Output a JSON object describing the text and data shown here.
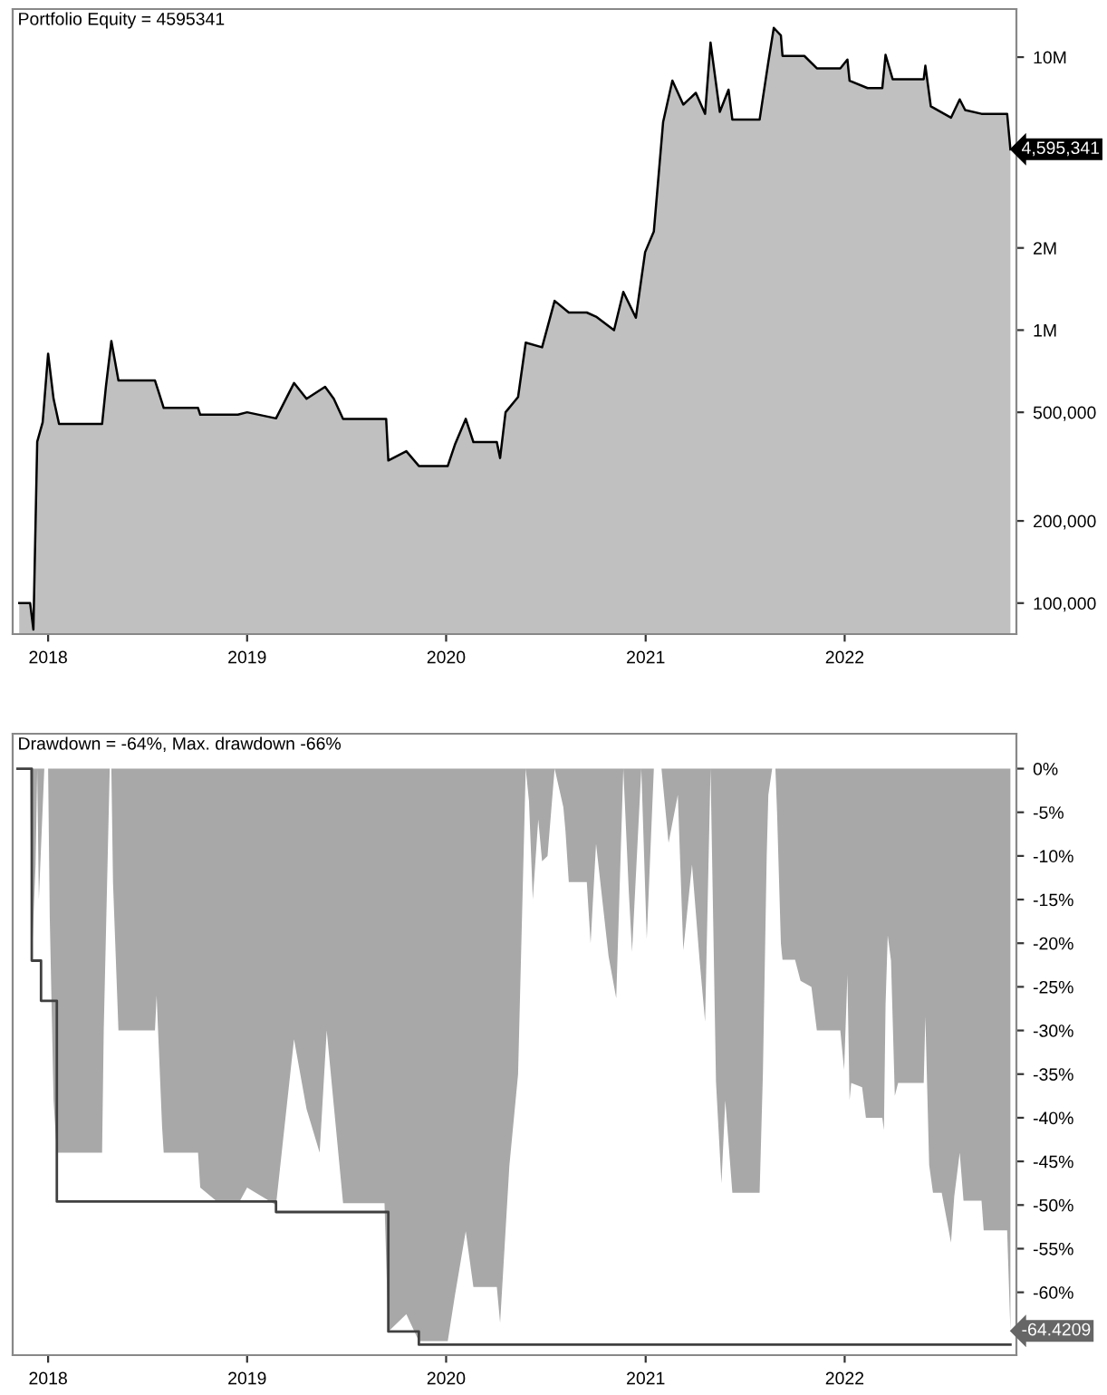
{
  "chart_data": [
    {
      "type": "area",
      "title": "Portfolio Equity = 4595341",
      "log": "y",
      "grid": false,
      "legend": false,
      "ylim": [
        77000,
        15000000
      ],
      "yticks": [
        {
          "value": 100000,
          "label": "100,000"
        },
        {
          "value": 200000,
          "label": "200,000"
        },
        {
          "value": 500000,
          "label": "500,000"
        },
        {
          "value": 1000000,
          "label": "1M"
        },
        {
          "value": 2000000,
          "label": "2M"
        },
        {
          "value": 10000000,
          "label": "10M"
        }
      ],
      "xlim": [
        "2017-10-28",
        "2022-11-12"
      ],
      "xticks": [
        {
          "value": "2018-01-01",
          "label": "2018"
        },
        {
          "value": "2019-01-01",
          "label": "2019"
        },
        {
          "value": "2020-01-01",
          "label": "2020"
        },
        {
          "value": "2021-01-01",
          "label": "2021"
        },
        {
          "value": "2022-01-01",
          "label": "2022"
        }
      ],
      "annotations": [
        {
          "text": "4,595,341",
          "x": "2022-11-01",
          "y": 4595341
        }
      ],
      "series": [
        {
          "color": "#c0c0c0",
          "x": [
            "2017-11-09",
            "2017-11-29",
            "2017-12-05",
            "2017-12-12",
            "2017-12-22",
            "2018-01-01",
            "2018-01-11",
            "2018-01-21",
            "2018-04-10",
            "2018-04-17",
            "2018-04-27",
            "2018-05-10",
            "2018-07-16",
            "2018-07-22",
            "2018-08-01",
            "2018-10-03",
            "2018-10-07",
            "2018-12-15",
            "2019-01-01",
            "2019-02-23",
            "2019-03-28",
            "2019-04-20",
            "2019-05-24",
            "2019-06-09",
            "2019-06-26",
            "2019-09-13",
            "2019-09-17",
            "2019-10-20",
            "2019-11-12",
            "2020-01-04",
            "2020-01-17",
            "2020-02-06",
            "2020-02-20",
            "2020-04-03",
            "2020-04-09",
            "2020-04-19",
            "2020-05-12",
            "2020-05-26",
            "2020-06-25",
            "2020-07-18",
            "2020-08-13",
            "2020-09-15",
            "2020-10-02",
            "2020-11-04",
            "2020-11-21",
            "2020-12-14",
            "2020-12-31",
            "2021-01-16",
            "2021-02-02",
            "2021-02-19",
            "2021-03-11",
            "2021-04-03",
            "2021-04-20",
            "2021-04-30",
            "2021-05-17",
            "2021-06-02",
            "2021-06-09",
            "2021-07-29",
            "2021-08-14",
            "2021-08-24",
            "2021-09-06",
            "2021-09-09",
            "2021-10-19",
            "2021-11-11",
            "2021-12-24",
            "2022-01-06",
            "2022-01-10",
            "2022-02-12",
            "2022-03-11",
            "2022-03-17",
            "2022-03-30",
            "2022-05-26",
            "2022-05-29",
            "2022-06-08",
            "2022-07-15",
            "2022-07-31",
            "2022-08-10",
            "2022-09-09",
            "2022-10-26",
            "2022-11-01"
          ],
          "values": [
            100000,
            100000,
            80000,
            390000,
            460000,
            820000,
            560000,
            453000,
            453000,
            620000,
            912000,
            654000,
            654000,
            600000,
            519000,
            519000,
            490000,
            490000,
            500000,
            475000,
            640000,
            560000,
            620000,
            560000,
            473000,
            473000,
            333000,
            360000,
            318000,
            318000,
            380000,
            473000,
            389000,
            389000,
            340000,
            500000,
            569000,
            900000,
            865000,
            1280000,
            1160000,
            1160000,
            1120000,
            1000000,
            1380000,
            1110000,
            1930000,
            2300000,
            5780000,
            8200000,
            6700000,
            7400000,
            6200000,
            11300000,
            6300000,
            7600000,
            5900000,
            5900000,
            9600000,
            12800000,
            12000000,
            10100000,
            10100000,
            9100000,
            9100000,
            9800000,
            8200000,
            7700000,
            7700000,
            10200000,
            8300000,
            8300000,
            9300000,
            6600000,
            6000000,
            7000000,
            6400000,
            6200000,
            6200000,
            4595341
          ]
        }
      ]
    },
    {
      "type": "area",
      "title": "Drawdown = -64%, Max. drawdown -66%",
      "grid": false,
      "legend": false,
      "ylim": [
        -67.2,
        4
      ],
      "yticks": [
        {
          "value": 0,
          "label": "0%"
        },
        {
          "value": -5,
          "label": "-5%"
        },
        {
          "value": -10,
          "label": "-10%"
        },
        {
          "value": -15,
          "label": "-15%"
        },
        {
          "value": -20,
          "label": "-20%"
        },
        {
          "value": -25,
          "label": "-25%"
        },
        {
          "value": -30,
          "label": "-30%"
        },
        {
          "value": -35,
          "label": "-35%"
        },
        {
          "value": -40,
          "label": "-40%"
        },
        {
          "value": -45,
          "label": "-45%"
        },
        {
          "value": -50,
          "label": "-50%"
        },
        {
          "value": -55,
          "label": "-55%"
        },
        {
          "value": -60,
          "label": "-60%"
        }
      ],
      "xlim": [
        "2017-10-28",
        "2022-11-12"
      ],
      "xticks": [
        {
          "value": "2018-01-01",
          "label": "2018"
        },
        {
          "value": "2019-01-01",
          "label": "2019"
        },
        {
          "value": "2020-01-01",
          "label": "2020"
        },
        {
          "value": "2021-01-01",
          "label": "2021"
        },
        {
          "value": "2022-01-01",
          "label": "2022"
        }
      ],
      "annotations": [
        {
          "text": "-64.4209",
          "x": "2022-11-01",
          "y": -64.4209
        }
      ],
      "series": [
        {
          "color": "#a8a8a8",
          "x": [
            "2017-11-06",
            "2017-11-29",
            "2017-12-02",
            "2017-12-09",
            "2017-12-12",
            "2017-12-15",
            "2017-12-25",
            "2018-01-01",
            "2018-01-04",
            "2018-01-11",
            "2018-01-17",
            "2018-04-10",
            "2018-04-13",
            "2018-04-24",
            "2018-04-27",
            "2018-04-30",
            "2018-05-10",
            "2018-07-16",
            "2018-07-19",
            "2018-07-29",
            "2018-08-01",
            "2018-10-03",
            "2018-10-07",
            "2018-11-05",
            "2018-12-19",
            "2019-01-01",
            "2019-02-23",
            "2019-03-28",
            "2019-04-20",
            "2019-05-14",
            "2019-05-27",
            "2019-06-09",
            "2019-06-26",
            "2019-09-10",
            "2019-09-17",
            "2019-10-20",
            "2019-11-12",
            "2020-01-04",
            "2020-01-17",
            "2020-02-06",
            "2020-02-20",
            "2020-04-03",
            "2020-04-09",
            "2020-04-26",
            "2020-05-12",
            "2020-05-26",
            "2020-06-01",
            "2020-06-08",
            "2020-06-18",
            "2020-06-25",
            "2020-07-05",
            "2020-07-18",
            "2020-08-03",
            "2020-08-07",
            "2020-08-13",
            "2020-09-15",
            "2020-09-22",
            "2020-10-02",
            "2020-10-25",
            "2020-11-08",
            "2020-11-21",
            "2020-12-01",
            "2020-12-07",
            "2020-12-24",
            "2021-01-03",
            "2021-01-16",
            "2021-01-30",
            "2021-02-12",
            "2021-03-01",
            "2021-03-11",
            "2021-03-27",
            "2021-04-10",
            "2021-04-20",
            "2021-04-30",
            "2021-05-10",
            "2021-05-20",
            "2021-05-27",
            "2021-06-09",
            "2021-07-29",
            "2021-08-04",
            "2021-08-11",
            "2021-08-14",
            "2021-08-21",
            "2021-08-27",
            "2021-08-30",
            "2021-09-06",
            "2021-09-09",
            "2021-10-02",
            "2021-10-12",
            "2021-11-01",
            "2021-11-11",
            "2021-12-24",
            "2021-12-31",
            "2022-01-06",
            "2022-01-10",
            "2022-01-13",
            "2022-02-02",
            "2022-02-09",
            "2022-03-11",
            "2022-03-14",
            "2022-03-17",
            "2022-03-21",
            "2022-03-27",
            "2022-04-03",
            "2022-04-09",
            "2022-05-26",
            "2022-05-29",
            "2022-06-05",
            "2022-06-12",
            "2022-06-28",
            "2022-07-15",
            "2022-07-21",
            "2022-07-31",
            "2022-08-07",
            "2022-09-09",
            "2022-09-13",
            "2022-10-26",
            "2022-11-01"
          ],
          "values": [
            0,
            0,
            -22,
            -11,
            0,
            -15,
            0,
            0,
            -17,
            -38,
            -44,
            -44,
            -30,
            0,
            0,
            -13,
            -30,
            -30,
            -26,
            -41,
            -44,
            -44,
            -48,
            -49.5,
            -49.5,
            -48,
            -50,
            -31,
            -39,
            -44,
            -30,
            -38.6,
            -49.8,
            -49.8,
            -64.5,
            -62.5,
            -65.6,
            -65.6,
            -60.4,
            -53,
            -59.4,
            -59.4,
            -63.5,
            -45.5,
            -35,
            0,
            -3.7,
            -15,
            -5.8,
            -10.6,
            -10,
            0,
            -4.4,
            -7.2,
            -13,
            -13,
            -20,
            -8.6,
            -21.5,
            -26.3,
            0,
            -14,
            -21,
            0,
            -19.5,
            0,
            0,
            -8.5,
            -3,
            -20.8,
            -11,
            -22,
            -29,
            0,
            -35.9,
            -47.5,
            -38,
            -48.6,
            -48.6,
            -35,
            -10,
            -3,
            0,
            0,
            -5,
            -20,
            -21.9,
            -21.9,
            -24.3,
            -25,
            -30,
            -30,
            -34.5,
            -23.6,
            -38,
            -36,
            -36.5,
            -40,
            -40,
            -41.4,
            -27,
            -19.1,
            -22,
            -37.5,
            -36,
            -36,
            -28.4,
            -45.4,
            -48.6,
            -48.6,
            -54.3,
            -49,
            -44,
            -49.5,
            -49.5,
            -52.9,
            -52.9,
            -64.4209
          ]
        },
        {
          "type": "step",
          "color": "#404040",
          "x": [
            "2017-11-06",
            "2017-12-02",
            "2017-12-19",
            "2018-01-17",
            "2019-02-23",
            "2019-09-17",
            "2019-11-12",
            "2022-11-01"
          ],
          "values": [
            0,
            -22,
            -26.6,
            -49.6,
            -50.8,
            -64.5,
            -66,
            -66
          ]
        }
      ]
    }
  ]
}
